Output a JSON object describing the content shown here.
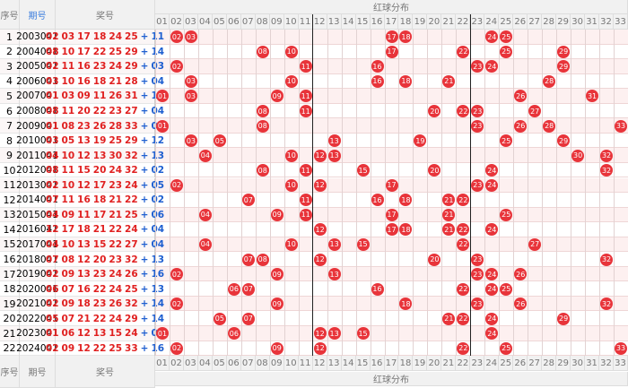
{
  "header": {
    "index": "序号",
    "issue": "期号",
    "numbers": "奖号",
    "distribution": "红球分布",
    "columns": [
      "01",
      "02",
      "03",
      "04",
      "05",
      "06",
      "07",
      "08",
      "09",
      "10",
      "11",
      "12",
      "13",
      "14",
      "15",
      "16",
      "17",
      "18",
      "19",
      "20",
      "21",
      "22",
      "23",
      "24",
      "25",
      "26",
      "27",
      "28",
      "29",
      "30",
      "31",
      "32",
      "33"
    ]
  },
  "plus": "+",
  "rows": [
    {
      "index": "1",
      "issue": "2003041",
      "red": [
        "02",
        "03",
        "17",
        "18",
        "24",
        "25"
      ],
      "blue": "11"
    },
    {
      "index": "2",
      "issue": "2004041",
      "red": [
        "08",
        "10",
        "17",
        "22",
        "25",
        "29"
      ],
      "blue": "14"
    },
    {
      "index": "3",
      "issue": "2005041",
      "red": [
        "02",
        "11",
        "16",
        "23",
        "24",
        "29"
      ],
      "blue": "03"
    },
    {
      "index": "4",
      "issue": "2006041",
      "red": [
        "03",
        "10",
        "16",
        "18",
        "21",
        "28"
      ],
      "blue": "04"
    },
    {
      "index": "5",
      "issue": "2007041",
      "red": [
        "01",
        "03",
        "09",
        "11",
        "26",
        "31"
      ],
      "blue": "12"
    },
    {
      "index": "6",
      "issue": "2008041",
      "red": [
        "08",
        "11",
        "20",
        "22",
        "23",
        "27"
      ],
      "blue": "04"
    },
    {
      "index": "7",
      "issue": "2009041",
      "red": [
        "01",
        "08",
        "23",
        "26",
        "28",
        "33"
      ],
      "blue": "08"
    },
    {
      "index": "8",
      "issue": "2010041",
      "red": [
        "03",
        "05",
        "13",
        "19",
        "25",
        "29"
      ],
      "blue": "12"
    },
    {
      "index": "9",
      "issue": "2011041",
      "red": [
        "04",
        "10",
        "12",
        "13",
        "30",
        "32"
      ],
      "blue": "13"
    },
    {
      "index": "10",
      "issue": "2012041",
      "red": [
        "08",
        "11",
        "15",
        "20",
        "24",
        "32"
      ],
      "blue": "02"
    },
    {
      "index": "11",
      "issue": "2013041",
      "red": [
        "02",
        "10",
        "12",
        "17",
        "23",
        "24"
      ],
      "blue": "05"
    },
    {
      "index": "12",
      "issue": "2014041",
      "red": [
        "07",
        "11",
        "16",
        "18",
        "21",
        "22"
      ],
      "blue": "02"
    },
    {
      "index": "13",
      "issue": "2015041",
      "red": [
        "04",
        "09",
        "11",
        "17",
        "21",
        "25"
      ],
      "blue": "06"
    },
    {
      "index": "14",
      "issue": "2016041",
      "red": [
        "12",
        "17",
        "18",
        "21",
        "22",
        "24"
      ],
      "blue": "04"
    },
    {
      "index": "15",
      "issue": "2017041",
      "red": [
        "04",
        "10",
        "13",
        "15",
        "22",
        "27"
      ],
      "blue": "04"
    },
    {
      "index": "16",
      "issue": "2018041",
      "red": [
        "07",
        "08",
        "12",
        "20",
        "23",
        "32"
      ],
      "blue": "13"
    },
    {
      "index": "17",
      "issue": "2019041",
      "red": [
        "02",
        "09",
        "13",
        "23",
        "24",
        "26"
      ],
      "blue": "16"
    },
    {
      "index": "18",
      "issue": "2020041",
      "red": [
        "06",
        "07",
        "16",
        "22",
        "24",
        "25"
      ],
      "blue": "13"
    },
    {
      "index": "19",
      "issue": "2021041",
      "red": [
        "02",
        "09",
        "18",
        "23",
        "26",
        "32"
      ],
      "blue": "14"
    },
    {
      "index": "20",
      "issue": "2022041",
      "red": [
        "05",
        "07",
        "21",
        "22",
        "24",
        "29"
      ],
      "blue": "14"
    },
    {
      "index": "21",
      "issue": "2023041",
      "red": [
        "01",
        "06",
        "12",
        "13",
        "15",
        "24"
      ],
      "blue": "06"
    },
    {
      "index": "22",
      "issue": "2024041",
      "red": [
        "02",
        "09",
        "12",
        "22",
        "25",
        "33"
      ],
      "blue": "16"
    }
  ]
}
